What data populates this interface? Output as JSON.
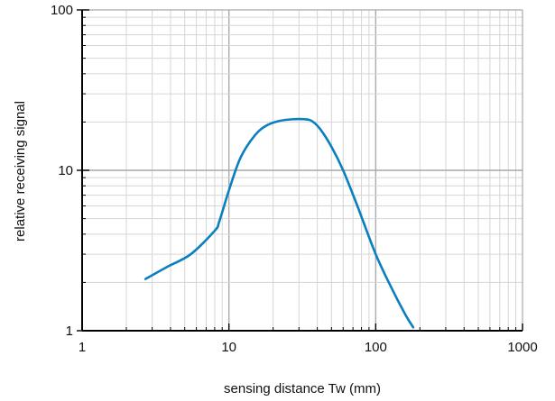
{
  "chart_data": {
    "type": "line",
    "title": "",
    "xlabel": "sensing distance Tw (mm)",
    "ylabel": "relative receiving signal",
    "x_scale": "log",
    "y_scale": "log",
    "xlim": [
      1,
      1000
    ],
    "ylim": [
      1,
      100
    ],
    "x_tick_labels": [
      "1",
      "10",
      "100",
      "1000"
    ],
    "y_tick_labels": [
      "1",
      "10",
      "100"
    ],
    "grid": true,
    "legend": "none",
    "series": [
      {
        "color": "#0a7fc0",
        "x": [
          2.7,
          3.8,
          5.5,
          8.0,
          8.6,
          10.0,
          12.0,
          15.0,
          18.0,
          22.0,
          27.0,
          33.0,
          37.0,
          42.0,
          50.0,
          60.0,
          75.0,
          100.0,
          130.0,
          160.0,
          180.0
        ],
        "y": [
          2.1,
          2.5,
          3.0,
          4.2,
          4.8,
          7.5,
          12.0,
          16.5,
          19.0,
          20.3,
          20.8,
          20.8,
          20.2,
          18.0,
          14.0,
          10.0,
          6.0,
          3.0,
          1.8,
          1.25,
          1.05
        ]
      }
    ]
  }
}
